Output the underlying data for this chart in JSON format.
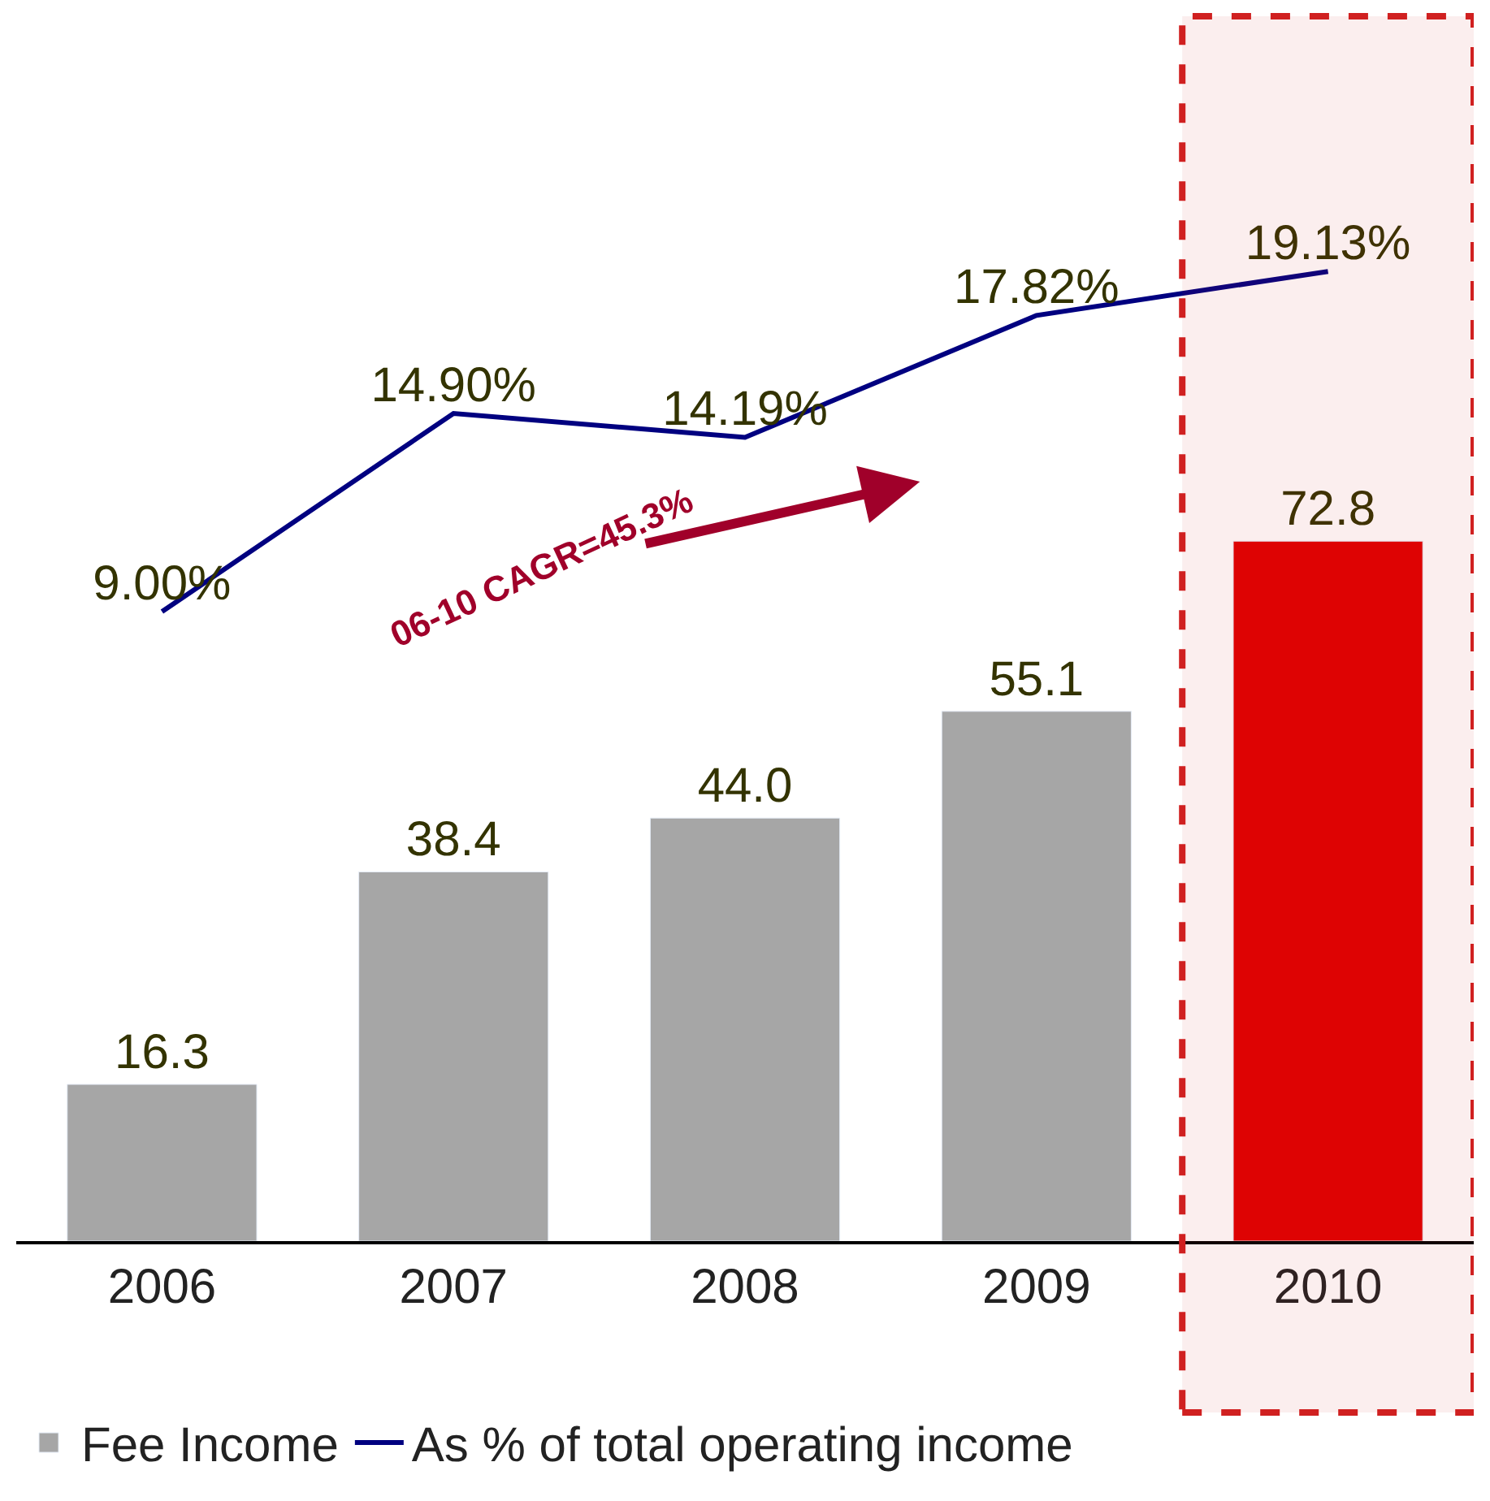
{
  "chart_data": {
    "type": "bar",
    "categories": [
      "2006",
      "2007",
      "2008",
      "2009",
      "2010"
    ],
    "series": [
      {
        "name": "Fee Income",
        "colors": [
          "#a6a6a6",
          "#a6a6a6",
          "#a6a6a6",
          "#a6a6a6",
          "#e00000"
        ],
        "values": [
          16.3,
          38.4,
          44.0,
          55.1,
          72.8
        ],
        "value_labels": [
          "16.3",
          "38.4",
          "44.0",
          "55.1",
          "72.8"
        ]
      },
      {
        "name": "As % of total operating income",
        "type": "line",
        "axis": "y2",
        "color": "#000080",
        "values": [
          9.0,
          14.9,
          14.19,
          17.82,
          19.13
        ],
        "value_labels": [
          "9.00%",
          "14.90%",
          "14.19%",
          "17.82%",
          "19.13%"
        ]
      }
    ],
    "tick_labels": "x",
    "legend": "bottom",
    "marker": "none",
    "line_style": "solid",
    "bands": [
      {
        "axis": "x",
        "from": "2010",
        "to": "2010",
        "color": "#d02020"
      }
    ],
    "annotations": [
      "06-10 CAGR=45.3%"
    ]
  }
}
